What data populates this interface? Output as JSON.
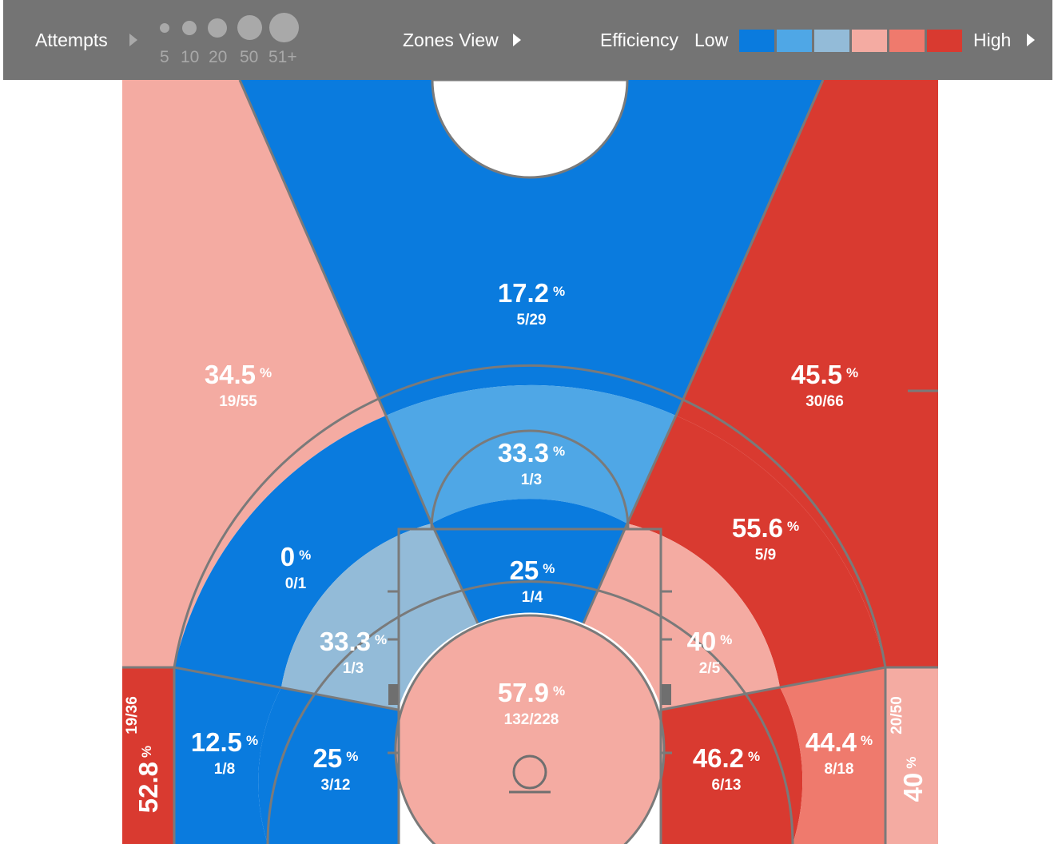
{
  "toolbar": {
    "attempts_label": "Attempts",
    "attempt_sizes": [
      "5",
      "10",
      "20",
      "50",
      "51+"
    ],
    "view_label": "Zones View",
    "efficiency_label": "Efficiency",
    "low_label": "Low",
    "high_label": "High",
    "scale_colors": [
      "#0a7bde",
      "#4fa7e6",
      "#93bbd8",
      "#f4aba2",
      "#ef7a6d",
      "#d93a30"
    ]
  },
  "chart_data": {
    "type": "heatmap",
    "title": "",
    "zones": [
      {
        "id": "above-break-center",
        "pct": "17.2",
        "made_attempts": "5/29",
        "color": "#0a7bde"
      },
      {
        "id": "above-break-left",
        "pct": "34.5",
        "made_attempts": "19/55",
        "color": "#f4aba2"
      },
      {
        "id": "above-break-right",
        "pct": "45.5",
        "made_attempts": "30/66",
        "color": "#d93a30"
      },
      {
        "id": "long-mid-center",
        "pct": "33.3",
        "made_attempts": "1/3",
        "color": "#4fa7e6"
      },
      {
        "id": "long-mid-left",
        "pct": "0",
        "made_attempts": "0/1",
        "color": "#0a7bde"
      },
      {
        "id": "long-mid-right",
        "pct": "55.6",
        "made_attempts": "5/9",
        "color": "#d93a30"
      },
      {
        "id": "short-mid-center",
        "pct": "25",
        "made_attempts": "1/4",
        "color": "#0a7bde"
      },
      {
        "id": "short-mid-left",
        "pct": "33.3",
        "made_attempts": "1/3",
        "color": "#93bbd8"
      },
      {
        "id": "short-mid-right",
        "pct": "40",
        "made_attempts": "2/5",
        "color": "#f4aba2"
      },
      {
        "id": "restricted-area",
        "pct": "57.9",
        "made_attempts": "132/228",
        "color": "#f4aba2"
      },
      {
        "id": "baseline-mid-left-outer",
        "pct": "12.5",
        "made_attempts": "1/8",
        "color": "#0a7bde"
      },
      {
        "id": "baseline-mid-left-inner",
        "pct": "25",
        "made_attempts": "3/12",
        "color": "#0a7bde"
      },
      {
        "id": "baseline-mid-right-inner",
        "pct": "46.2",
        "made_attempts": "6/13",
        "color": "#d93a30"
      },
      {
        "id": "baseline-mid-right-outer",
        "pct": "44.4",
        "made_attempts": "8/18",
        "color": "#ef7a6d"
      },
      {
        "id": "corner-three-left",
        "pct": "52.8",
        "made_attempts": "19/36",
        "color": "#d93a30"
      },
      {
        "id": "corner-three-right",
        "pct": "40",
        "made_attempts": "20/50",
        "color": "#f4aba2"
      }
    ]
  }
}
